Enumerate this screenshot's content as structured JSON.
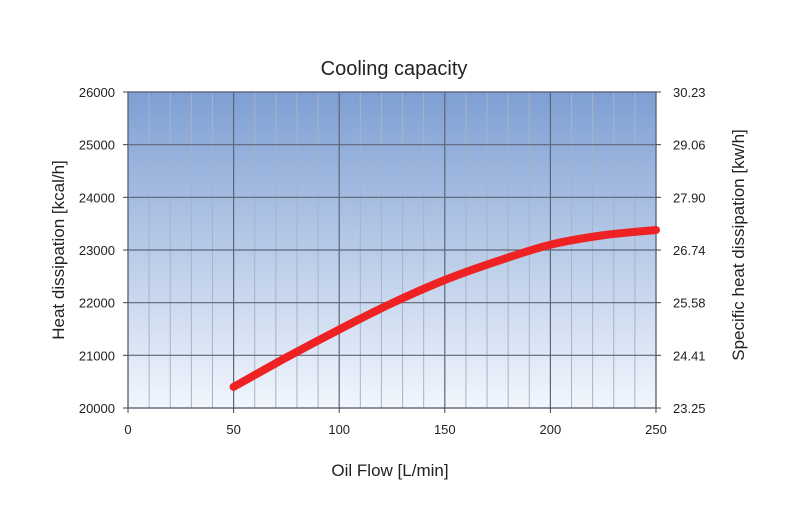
{
  "chart_data": {
    "type": "line",
    "title": "Cooling capacity",
    "xlabel": "Oil Flow [L/min]",
    "ylabel": "Heat dissipation [kcal/h]",
    "y2label": "Specific heat dissipation [kw/h]",
    "xlim": [
      0,
      250
    ],
    "ylim": [
      20000,
      26000
    ],
    "y2lim": [
      23.25,
      30.23
    ],
    "x_ticks": [
      "0",
      "50",
      "100",
      "150",
      "200",
      "250"
    ],
    "x_tick_values": [
      0,
      50,
      100,
      150,
      200,
      250
    ],
    "y_ticks": [
      "20000",
      "21000",
      "22000",
      "23000",
      "24000",
      "25000",
      "26000"
    ],
    "y_tick_values": [
      20000,
      21000,
      22000,
      23000,
      24000,
      25000,
      26000
    ],
    "y2_ticks": [
      "23.25",
      "24.41",
      "25.58",
      "26.74",
      "27.90",
      "29.06",
      "30.23"
    ],
    "x_minor_step": 10,
    "grid": true,
    "series": [
      {
        "name": "Cooling capacity",
        "color": "#ee2222",
        "x": [
          50,
          75,
          100,
          125,
          150,
          175,
          200,
          225,
          250
        ],
        "y": [
          20400,
          20960,
          21490,
          21990,
          22430,
          22790,
          23100,
          23280,
          23380
        ]
      }
    ],
    "colors": {
      "plot_top": "#7e9fd3",
      "plot_bottom": "#f2f6fd",
      "grid_major": "#5e6577",
      "grid_minor": "#a9b2c6"
    }
  }
}
